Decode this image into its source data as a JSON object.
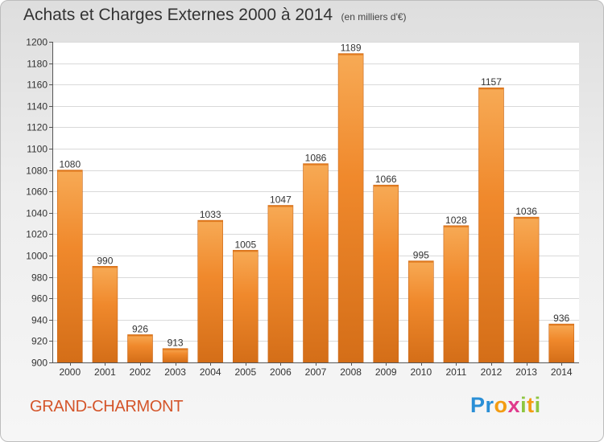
{
  "title": "Achats et Charges Externes 2000 à 2014",
  "subtitle": "(en milliers d'€)",
  "location": "GRAND-CHARMONT",
  "logo": {
    "letters": [
      "P",
      "r",
      "o",
      "x",
      "i",
      "t",
      "i"
    ],
    "colors": [
      "#2a8fd6",
      "#2a8fd6",
      "#f39c12",
      "#e03a8c",
      "#8dc63f",
      "#f39c12",
      "#8dc63f"
    ]
  },
  "chart_data": {
    "type": "bar",
    "categories": [
      "2000",
      "2001",
      "2002",
      "2003",
      "2004",
      "2005",
      "2006",
      "2007",
      "2008",
      "2009",
      "2010",
      "2011",
      "2012",
      "2013",
      "2014"
    ],
    "values": [
      1080,
      990,
      926,
      913,
      1033,
      1005,
      1047,
      1086,
      1189,
      1066,
      995,
      1028,
      1157,
      1036,
      936
    ],
    "title": "Achats et Charges Externes 2000 à 2014",
    "xlabel": "",
    "ylabel": "",
    "ylim": [
      900,
      1200
    ],
    "yticks": [
      900,
      920,
      940,
      960,
      980,
      1000,
      1020,
      1040,
      1060,
      1080,
      1100,
      1120,
      1140,
      1160,
      1180,
      1200
    ],
    "grid": true,
    "data_labels": true,
    "bar_color": "#f0892c",
    "bar_color_light": "#f7aa55",
    "bar_color_dark": "#d46e18"
  }
}
